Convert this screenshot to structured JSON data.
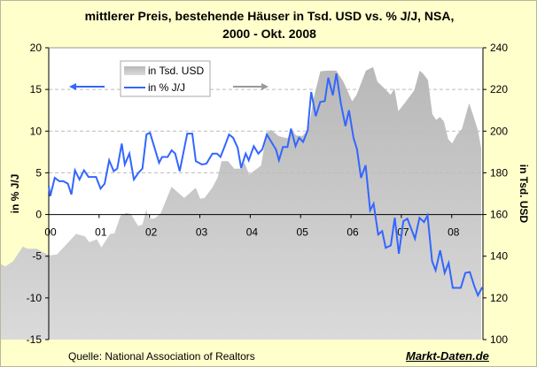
{
  "chart_data": {
    "type": "line+area",
    "title_line1": "mittlerer Preis, bestehende Häuser in Tsd. USD vs. % J/J, NSA,",
    "title_line2": "2000 - Okt. 2008",
    "ylabel_left": "in % J/J",
    "ylabel_right": "in Tsd. USD",
    "ylim_left": [
      -15,
      20
    ],
    "ylim_right": [
      100,
      240
    ],
    "yticks_left": [
      "20",
      "15",
      "10",
      "5",
      "0",
      "-5",
      "-10",
      "-15"
    ],
    "yticks_right": [
      "240",
      "220",
      "200",
      "180",
      "160",
      "140",
      "120",
      "100"
    ],
    "xticks": [
      "00",
      "01",
      "02",
      "03",
      "04",
      "05",
      "06",
      "07",
      "08"
    ],
    "xlim": [
      2000,
      2008.62
    ],
    "grid": "horizontal dashed",
    "legend": {
      "placement": "top-left",
      "entries": [
        "in Tsd. USD",
        "in % J/J"
      ]
    },
    "colors": {
      "line": "#3366FF",
      "area": "#C0C0C0",
      "background": "#FFFFCC"
    },
    "series": [
      {
        "name": "in % J/J",
        "axis": "left",
        "type": "line",
        "x": [
          2000.0,
          2000.03,
          2000.12,
          2000.21,
          2000.29,
          2000.38,
          2000.45,
          2000.52,
          2000.61,
          2000.7,
          2000.79,
          2000.94,
          2001.03,
          2001.11,
          2001.2,
          2001.29,
          2001.36,
          2001.45,
          2001.51,
          2001.6,
          2001.69,
          2001.78,
          2001.86,
          2001.94,
          2002.01,
          2002.19,
          2002.25,
          2002.36,
          2002.44,
          2002.51,
          2002.6,
          2002.75,
          2002.85,
          2002.92,
          2003.04,
          2003.13,
          2003.25,
          2003.34,
          2003.41,
          2003.5,
          2003.58,
          2003.66,
          2003.75,
          2003.82,
          2003.91,
          2003.97,
          2004.07,
          2004.16,
          2004.24,
          2004.33,
          2004.51,
          2004.57,
          2004.65,
          2004.74,
          2004.81,
          2004.9,
          2004.97,
          2005.05,
          2005.14,
          2005.21,
          2005.3,
          2005.39,
          2005.48,
          2005.55,
          2005.64,
          2005.71,
          2005.8,
          2005.89,
          2005.96,
          2006.05,
          2006.12,
          2006.2,
          2006.29,
          2006.38,
          2006.45,
          2006.54,
          2006.62,
          2006.69,
          2006.79,
          2006.87,
          2006.95,
          2007.04,
          2007.12,
          2007.27,
          2007.36,
          2007.45,
          2007.52,
          2007.61,
          2007.68,
          2007.77,
          2007.86,
          2007.94,
          2008.02,
          2008.18,
          2008.27,
          2008.36,
          2008.45,
          2008.52,
          2008.61
        ],
        "values": [
          3.4,
          2.2,
          4.4,
          4.0,
          4.0,
          3.7,
          2.4,
          5.3,
          4.2,
          5.3,
          4.5,
          4.5,
          3.1,
          3.7,
          6.5,
          5.2,
          5.5,
          8.5,
          6.0,
          7.3,
          4.2,
          5.0,
          5.5,
          9.6,
          9.8,
          6.2,
          6.9,
          6.9,
          7.7,
          7.3,
          5.2,
          9.7,
          9.7,
          6.4,
          6.0,
          6.1,
          7.3,
          7.3,
          6.9,
          8.3,
          9.6,
          9.2,
          8.0,
          5.6,
          7.3,
          6.5,
          8.2,
          7.3,
          7.8,
          9.6,
          7.8,
          6.5,
          8.1,
          8.1,
          10.3,
          8.2,
          9.2,
          8.7,
          10.1,
          14.7,
          11.8,
          13.5,
          13.6,
          16.4,
          14.3,
          16.9,
          13.3,
          10.6,
          12.5,
          9.2,
          7.8,
          4.4,
          5.9,
          0.5,
          1.3,
          -2.4,
          -2.0,
          -4.0,
          -3.7,
          -0.4,
          -4.7,
          -0.8,
          -0.5,
          -2.9,
          -0.4,
          -0.9,
          -0.1,
          -5.6,
          -6.7,
          -4.3,
          -7.0,
          -5.8,
          -8.8,
          -8.8,
          -7.0,
          -6.9,
          -8.6,
          -9.7,
          -8.7
        ]
      },
      {
        "name": "in Tsd. USD",
        "axis": "right",
        "type": "area",
        "x": [
          2000.0,
          2000.08,
          2000.22,
          2000.4,
          2000.48,
          2000.65,
          2000.81,
          2000.89,
          2001.02,
          2001.37,
          2001.53,
          2001.61,
          2001.75,
          2001.83,
          2001.99,
          2002.07,
          2002.18,
          2002.29,
          2002.37,
          2002.5,
          2002.58,
          2002.65,
          2002.69,
          2002.8,
          2002.91,
          2003.11,
          2003.34,
          2003.55,
          2003.63,
          2003.71,
          2003.85,
          2003.95,
          2004.02,
          2004.14,
          2004.25,
          2004.35,
          2004.44,
          2004.52,
          2004.63,
          2004.74,
          2004.84,
          2004.92,
          2005.06,
          2005.22,
          2005.3,
          2005.38,
          2005.49,
          2005.6,
          2005.7,
          2005.82,
          2005.95,
          2006.11,
          2006.24,
          2006.4,
          2006.48,
          2006.65,
          2006.78,
          2006.86,
          2007.0,
          2007.1,
          2007.17,
          2007.24,
          2007.37,
          2007.53,
          2007.63,
          2007.7,
          2007.78,
          2007.86,
          2007.93,
          2008.0,
          2008.07,
          2008.15,
          2008.22,
          2008.31,
          2008.4,
          2008.53,
          2008.64,
          2008.69,
          2008.75
        ],
        "values": [
          136.1,
          135.1,
          137.5,
          144.6,
          143.6,
          143.6,
          141.3,
          140.4,
          140.8,
          150.7,
          149.5,
          146.7,
          148.1,
          144.2,
          150.7,
          151.0,
          159.4,
          160.8,
          160.1,
          154.5,
          155.2,
          162.3,
          158.0,
          158.0,
          160.6,
          173.3,
          167.9,
          172.9,
          167.6,
          167.9,
          172.9,
          177.8,
          185.6,
          185.6,
          182.0,
          182.0,
          184.9,
          179.2,
          181.3,
          183.5,
          199.0,
          200.7,
          197.6,
          196.5,
          200.4,
          197.9,
          197.6,
          200.7,
          216.0,
          228.7,
          229.0,
          229.0,
          223.7,
          214.3,
          217.4,
          229.0,
          230.8,
          223.7,
          220.2,
          217.4,
          220.5,
          209.6,
          213.9,
          219.5,
          229.0,
          227.3,
          224.5,
          208.2,
          205.4,
          206.8,
          204.7,
          196.2,
          194.1,
          198.3,
          201.1,
          213.4,
          204.7,
          200.4,
          191.9
        ]
      }
    ]
  },
  "footer": {
    "source": "Quelle: National Association of Realtors",
    "brand": "Markt-Daten.de"
  }
}
